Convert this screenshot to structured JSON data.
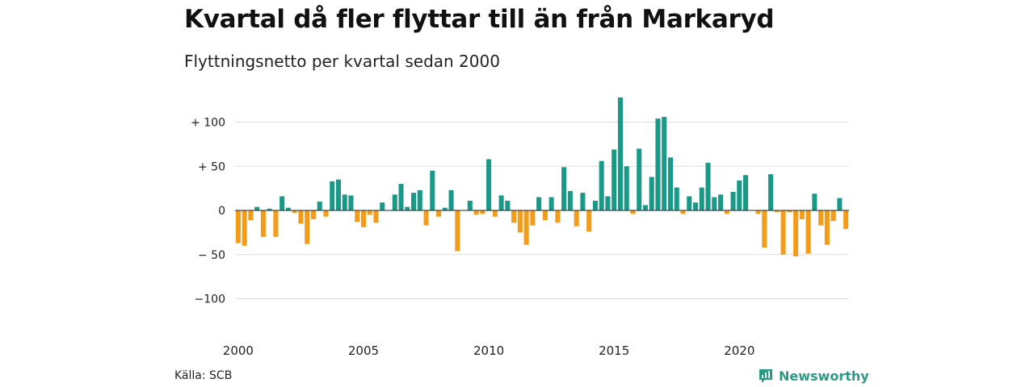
{
  "title": "Kvartal då fler flyttar till än från Markaryd",
  "subtitle": "Flyttningsnetto per kvartal sedan 2000",
  "source": "Källa: SCB",
  "brand": "Newsworthy",
  "colors": {
    "positive": "#1a9989",
    "negative": "#f39c19",
    "grid": "#dddddd",
    "brand": "#2a9a84"
  },
  "chart_data": {
    "type": "bar",
    "title": "Kvartal då fler flyttar till än från Markaryd",
    "subtitle": "Flyttningsnetto per kvartal sedan 2000",
    "xlabel": "",
    "ylabel": "",
    "ylim": [
      -125,
      140
    ],
    "yticks": [
      100,
      50,
      0,
      -50,
      -100
    ],
    "ytick_labels": [
      "+ 100",
      "+  50",
      "0",
      "− 50",
      "−100"
    ],
    "xticks": [
      "2000",
      "2005",
      "2010",
      "2015",
      "2020"
    ],
    "grid": true,
    "start": "2000 Q1",
    "values": [
      -37,
      -40,
      -11,
      4,
      -30,
      2,
      -30,
      16,
      3,
      -3,
      -15,
      -38,
      -10,
      10,
      -7,
      33,
      35,
      18,
      17,
      -13,
      -19,
      -5,
      -14,
      9,
      0,
      18,
      30,
      4,
      20,
      23,
      -17,
      45,
      -7,
      3,
      23,
      -46,
      0,
      11,
      -5,
      -4,
      58,
      -7,
      17,
      11,
      -14,
      -25,
      -39,
      -17,
      15,
      -11,
      15,
      -14,
      49,
      22,
      -18,
      20,
      -24,
      11,
      56,
      16,
      69,
      128,
      50,
      -4,
      70,
      6,
      38,
      104,
      106,
      60,
      26,
      -4,
      16,
      9,
      26,
      54,
      15,
      18,
      -4,
      21,
      34,
      40,
      0,
      -4,
      -42,
      41,
      -2,
      -50,
      -2,
      -52,
      -10,
      -49,
      19,
      -17,
      -39,
      -12,
      14,
      -21
    ]
  }
}
